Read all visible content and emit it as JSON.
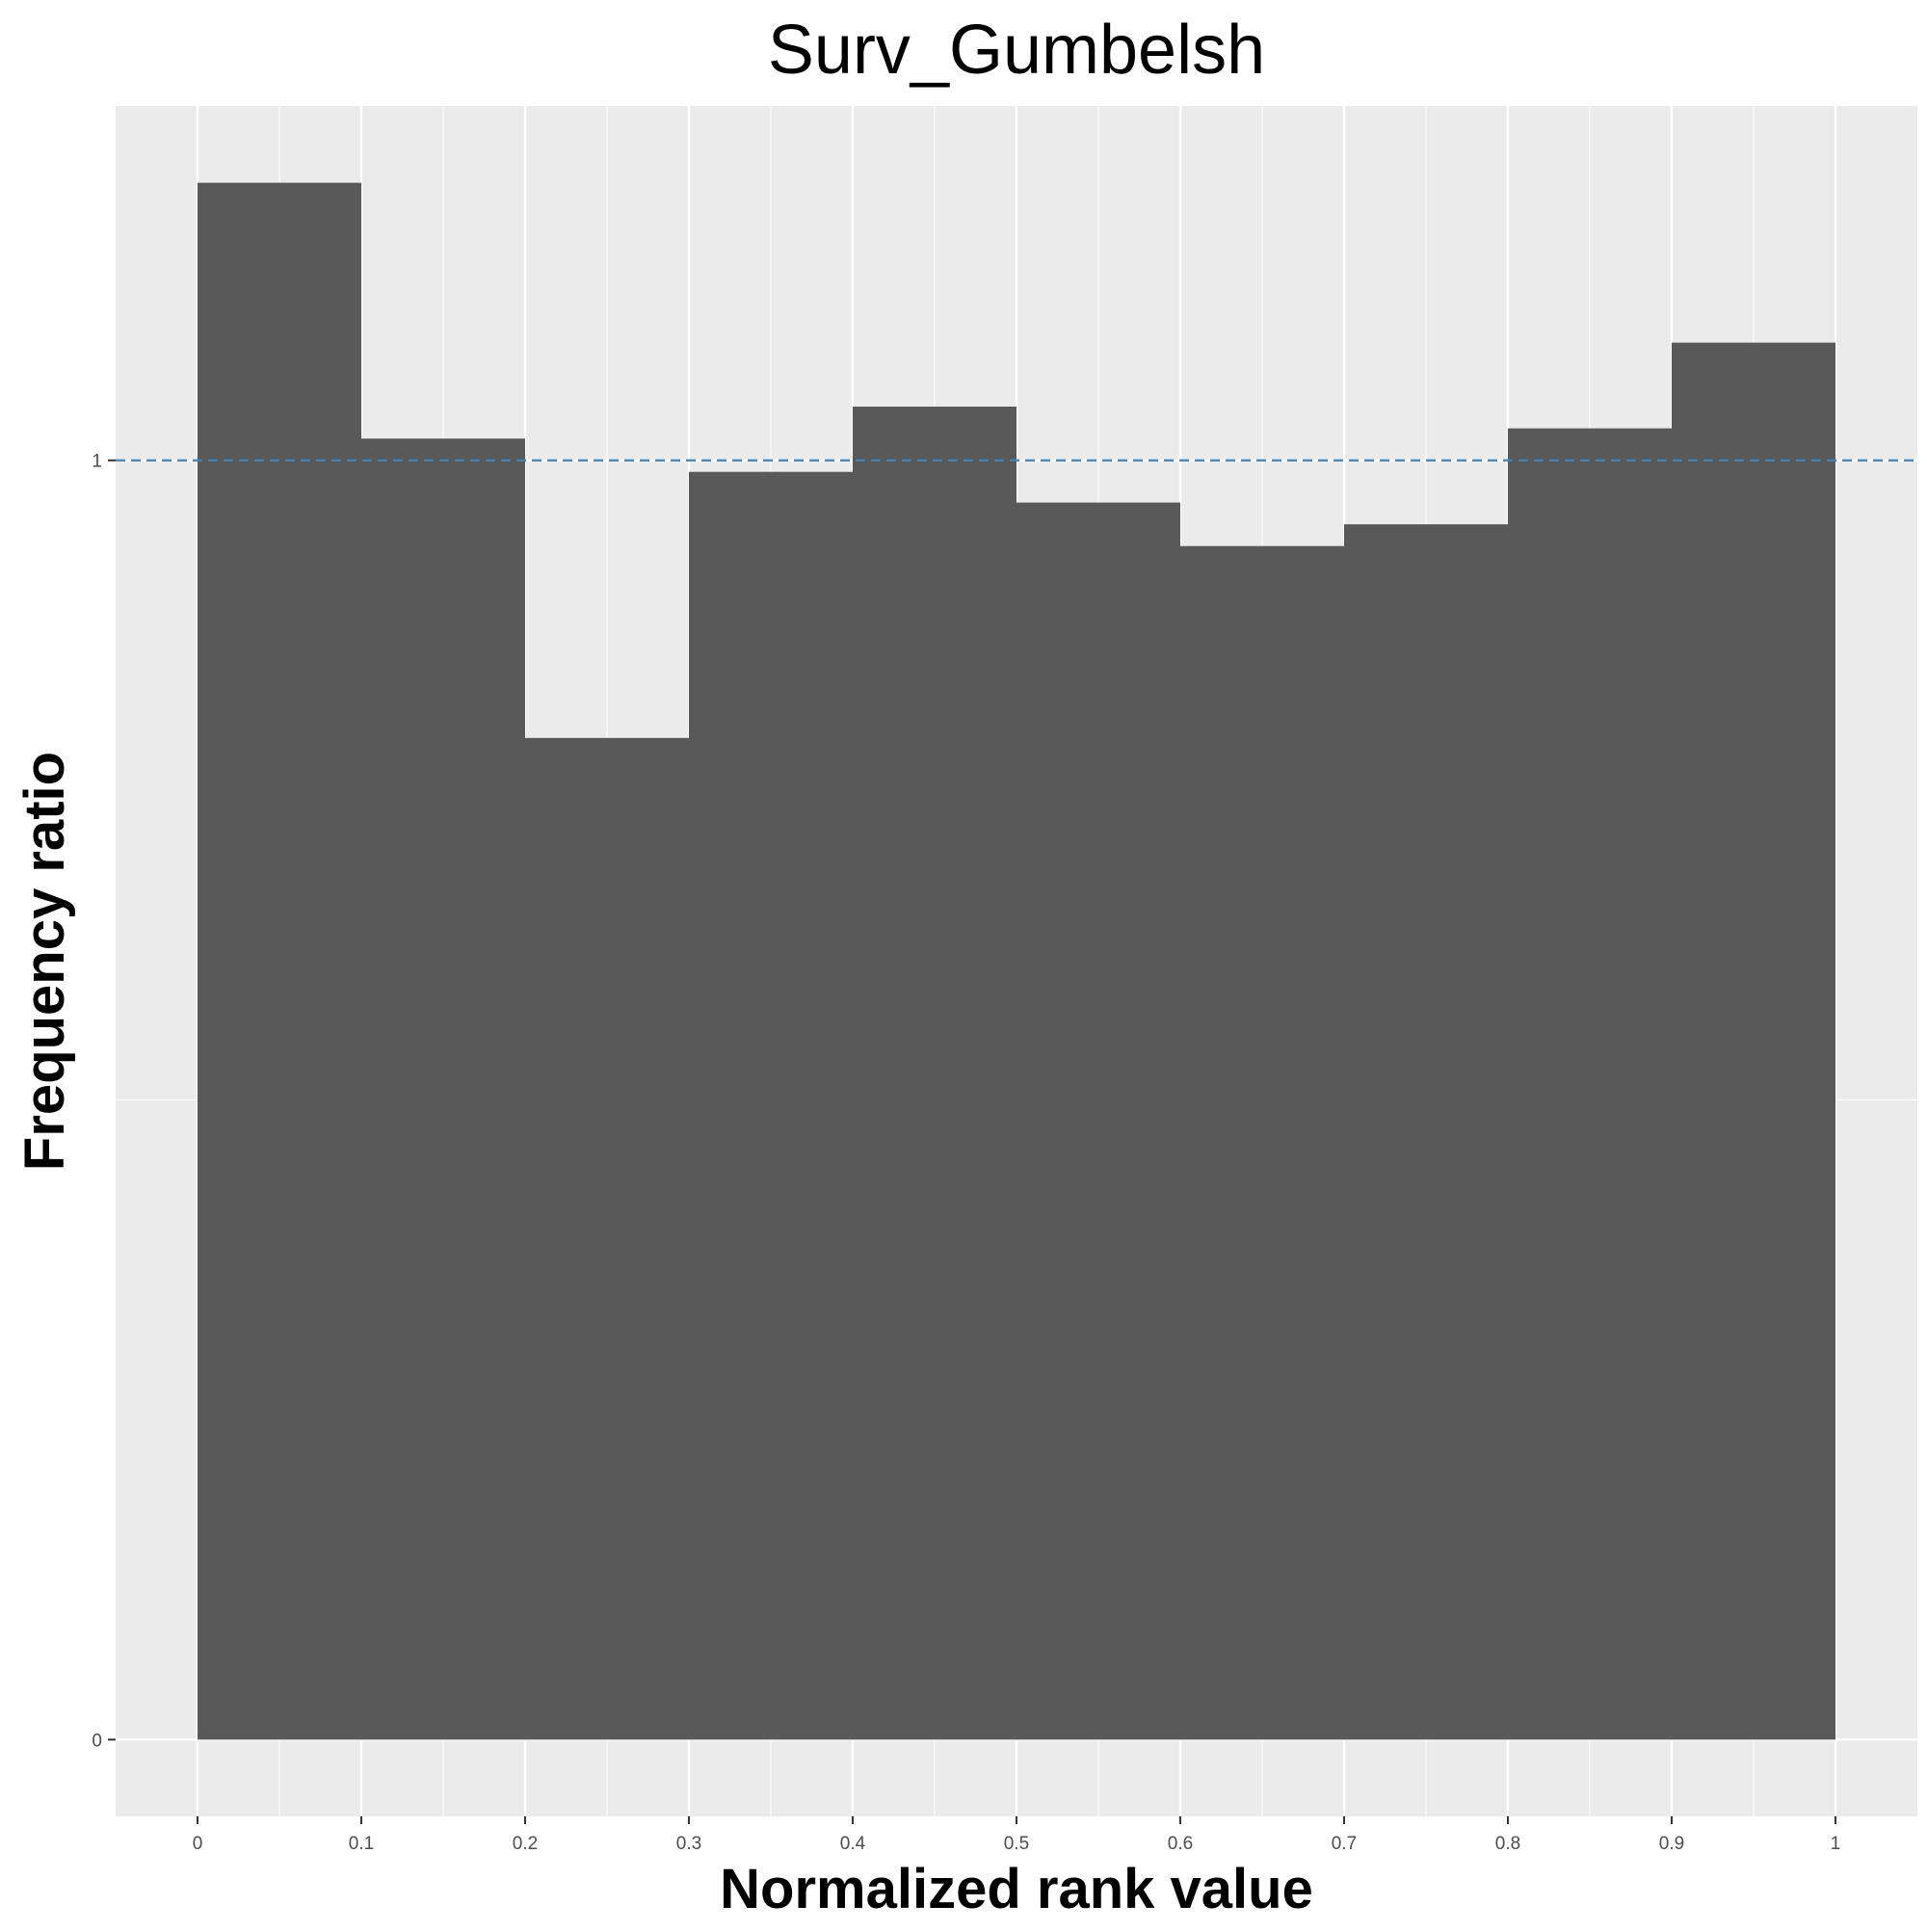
{
  "chart_data": {
    "type": "bar",
    "title": "Surv_Gumbelsh",
    "xlabel": "Normalized rank value",
    "ylabel": "Frequency ratio",
    "bin_edges": [
      0,
      0.1,
      0.2,
      0.3,
      0.4,
      0.5,
      0.6,
      0.7,
      0.8,
      0.9,
      1.0
    ],
    "values": [
      1.217,
      1.017,
      0.783,
      0.991,
      1.042,
      0.967,
      0.933,
      0.95,
      1.025,
      1.092
    ],
    "xlim": [
      -0.05,
      1.05
    ],
    "ylim": [
      -0.06,
      1.277
    ],
    "x_ticks": [
      0,
      0.1,
      0.2,
      0.3,
      0.4,
      0.5,
      0.6,
      0.7,
      0.8,
      0.9,
      1
    ],
    "x_tick_labels": [
      "0",
      "0.1",
      "0.2",
      "0.3",
      "0.4",
      "0.5",
      "0.6",
      "0.7",
      "0.8",
      "0.9",
      "1"
    ],
    "y_ticks": [
      0,
      1
    ],
    "y_tick_labels": [
      "0",
      "1"
    ],
    "reference_line": {
      "y": 1,
      "style": "dashed",
      "color": "#4682b4"
    },
    "grid": true,
    "legend": "none",
    "colors": {
      "bar": "#595959",
      "panel": "#ebebeb",
      "grid": "#ffffff"
    }
  }
}
